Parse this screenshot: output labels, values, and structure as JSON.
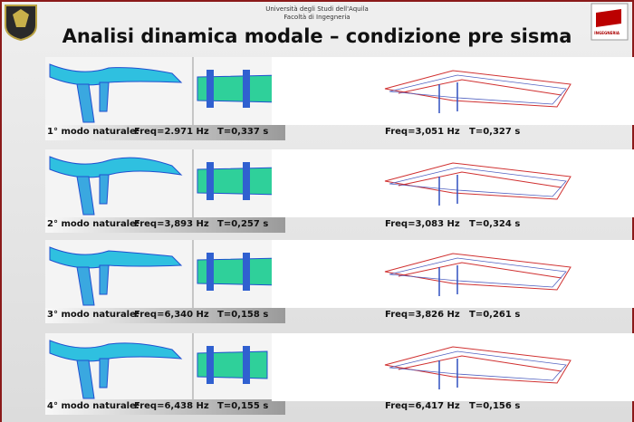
{
  "header": {
    "university": "Università degli Studi dell'Aquila",
    "faculty": "Facoltà di Ingegneria",
    "logo_text": "INGEGNERIA"
  },
  "title": "Analisi dinamica modale – condizione pre sisma",
  "modes": [
    {
      "label": "1° modo naturale:",
      "left_freq": "Freq=2.971 Hz",
      "left_period": "T=0,337 s",
      "right_freq": "Freq=3,051 Hz",
      "right_period": "T=0,327 s"
    },
    {
      "label": "2° modo naturale:",
      "left_freq": "Freq=3,893 Hz",
      "left_period": "T=0,257 s",
      "right_freq": "Freq=3,083 Hz",
      "right_period": "T=0,324 s"
    },
    {
      "label": "3° modo naturale:",
      "left_freq": "Freq=6,340 Hz",
      "left_period": "T=0,158 s",
      "right_freq": "Freq=3,826 Hz",
      "right_period": "T=0,261 s"
    },
    {
      "label": "4° modo naturale:",
      "left_freq": "Freq=6,438 Hz",
      "left_period": "T=0,155 s",
      "right_freq": "Freq=6,417 Hz",
      "right_period": "T=0,156 s"
    }
  ]
}
